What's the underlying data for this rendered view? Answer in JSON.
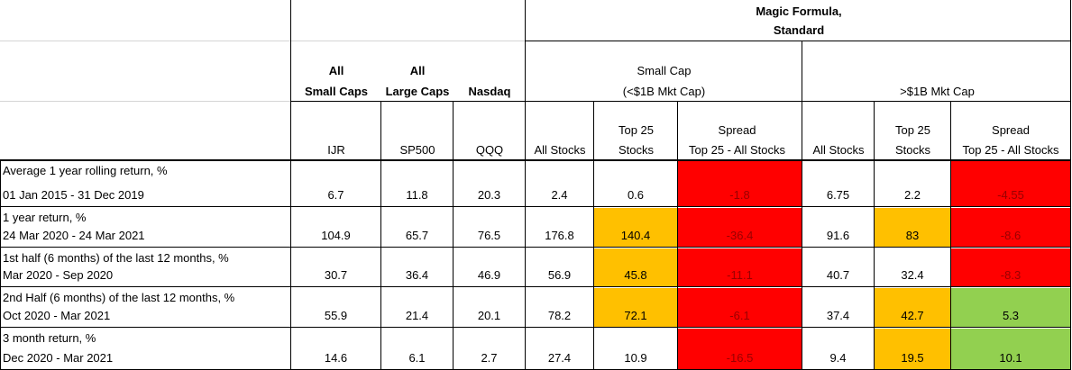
{
  "header": {
    "magic_title_1": "Magic Formula,",
    "magic_title_2": "Standard",
    "all_small_1": "All",
    "all_small_2": "Small Caps",
    "all_large_1": "All",
    "all_large_2": "Large Caps",
    "nasdaq": "Nasdaq",
    "small_cap_1": "Small Cap",
    "small_cap_2": "(<$1B Mkt Cap)",
    "large_cap": ">$1B Mkt Cap",
    "tickers": [
      "IJR",
      "SP500",
      "QQQ"
    ],
    "sub_all_stocks": "All Stocks",
    "sub_top25_1": "Top 25",
    "sub_top25_2": "Stocks",
    "sub_spread_1": "Spread",
    "sub_spread_2": "Top 25 - All Stocks"
  },
  "colors": {
    "red": "#ff0000",
    "orange": "#ffc000",
    "green": "#92d050",
    "spread_text_on_red": "#990000"
  },
  "rows": [
    {
      "label1": "Average 1 year rolling return, %",
      "label2": "01 Jan 2015 - 31 Dec 2019",
      "values": [
        "6.7",
        "11.8",
        "20.3",
        "2.4",
        "0.6",
        "-1.8",
        "6.75",
        "2.2",
        "-4.55"
      ],
      "fills": [
        "",
        "",
        "",
        "",
        "",
        "red",
        "",
        "",
        "red"
      ]
    },
    {
      "label1": "1 year return, %",
      "label2": "24 Mar 2020 - 24 Mar 2021",
      "values": [
        "104.9",
        "65.7",
        "76.5",
        "176.8",
        "140.4",
        "-36.4",
        "91.6",
        "83",
        "-8.6"
      ],
      "fills": [
        "",
        "",
        "",
        "",
        "orange",
        "red",
        "",
        "orange",
        "red"
      ]
    },
    {
      "label1": "1st half (6 months) of the last 12 months, %",
      "label2": "Mar 2020 - Sep 2020",
      "values": [
        "30.7",
        "36.4",
        "46.9",
        "56.9",
        "45.8",
        "-11.1",
        "40.7",
        "32.4",
        "-8.3"
      ],
      "fills": [
        "",
        "",
        "",
        "",
        "orange",
        "red",
        "",
        "",
        "red"
      ]
    },
    {
      "label1": "2nd Half (6 months) of the last 12 months, %",
      "label2": "Oct 2020 - Mar 2021",
      "values": [
        "55.9",
        "21.4",
        "20.1",
        "78.2",
        "72.1",
        "-6.1",
        "37.4",
        "42.7",
        "5.3"
      ],
      "fills": [
        "",
        "",
        "",
        "",
        "orange",
        "red",
        "",
        "orange",
        "green"
      ]
    },
    {
      "label1": "3 month return, %",
      "label2": "Dec 2020 - Mar 2021",
      "values": [
        "14.6",
        "6.1",
        "2.7",
        "27.4",
        "10.9",
        "-16.5",
        "9.4",
        "19.5",
        "10.1"
      ],
      "fills": [
        "",
        "",
        "",
        "",
        "",
        "red",
        "",
        "orange",
        "green"
      ]
    }
  ]
}
